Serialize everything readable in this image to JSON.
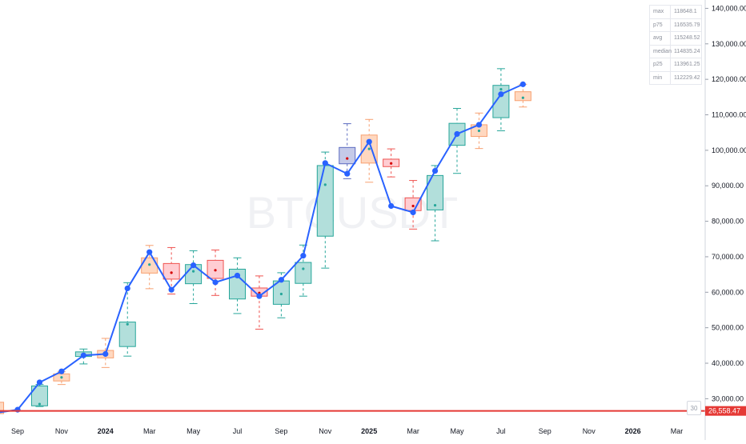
{
  "watermark": "BTCUSDT",
  "badge": "30",
  "stats": [
    {
      "key": "max",
      "value": "118648.1"
    },
    {
      "key": "p75",
      "value": "116535.79"
    },
    {
      "key": "avg",
      "value": "115248.52"
    },
    {
      "key": "median",
      "value": "114835.24"
    },
    {
      "key": "p25",
      "value": "113961.25"
    },
    {
      "key": "min",
      "value": "112229.42"
    }
  ],
  "price_tag": "26,558.47",
  "colors": {
    "line": "#2962ff",
    "up_fill": "#b2dfdb",
    "up_stroke": "#26a69a",
    "down_fill": "#ffcdd2",
    "down_stroke": "#ef5350",
    "orange_fill": "#ffd8c0",
    "orange_stroke": "#f7a070",
    "blue_fill": "#c5cae9",
    "blue_stroke": "#5c6bc0",
    "red_line": "#e53935"
  },
  "chart_data": {
    "type": "box",
    "title": "",
    "xlabel": "",
    "ylabel": "",
    "y_ticks": [
      "30,000.00",
      "40,000.00",
      "50,000.00",
      "60,000.00",
      "70,000.00",
      "80,000.00",
      "90,000.00",
      "100,000.00",
      "110,000.00",
      "120,000.00",
      "130,000.00",
      "140,000.00"
    ],
    "ylim": [
      24000,
      141000
    ],
    "x_ticks": [
      "Sep",
      "Nov",
      "2024",
      "Mar",
      "May",
      "Jul",
      "Sep",
      "Nov",
      "2025",
      "Mar",
      "May",
      "Jul",
      "Sep",
      "Nov",
      "2026",
      "Mar"
    ],
    "series": [
      {
        "x": [
          "2023-08",
          "2023-09",
          "2023-10",
          "2023-11",
          "2023-12",
          "2024-01",
          "2024-02",
          "2024-03",
          "2024-04",
          "2024-05",
          "2024-06",
          "2024-07",
          "2024-08",
          "2024-09",
          "2024-10",
          "2024-11",
          "2024-12",
          "2025-01",
          "2025-02",
          "2025-03",
          "2025-04",
          "2025-05",
          "2025-06",
          "2025-07",
          "2025-08"
        ],
        "values": [
          26000,
          26900,
          34600,
          37700,
          42200,
          42600,
          61100,
          71300,
          60700,
          67600,
          62800,
          64700,
          58900,
          63500,
          70300,
          96400,
          93400,
          102400,
          84300,
          82500,
          94200,
          104600,
          107200,
          115800,
          118600
        ]
      }
    ],
    "boxes": [
      {
        "x": "2023-08",
        "q1": 25800,
        "q3": 29000,
        "color": "orange"
      },
      {
        "x": "2023-10",
        "low": 27800,
        "high": 34000,
        "q1": 28000,
        "q3": 33600,
        "med": 28500,
        "color": "green"
      },
      {
        "x": "2023-11",
        "low": 34000,
        "high": 37600,
        "q1": 35000,
        "q3": 37000,
        "med": 36000,
        "color": "orange"
      },
      {
        "x": "2023-12",
        "low": 39800,
        "high": 44000,
        "q1": 41900,
        "q3": 43200,
        "med": 42600,
        "color": "green"
      },
      {
        "x": "2024-01",
        "low": 38800,
        "high": 47000,
        "q1": 41500,
        "q3": 43600,
        "med": 42600,
        "color": "orange"
      },
      {
        "x": "2024-02",
        "low": 42000,
        "high": 62700,
        "q1": 44700,
        "q3": 51600,
        "med": 51000,
        "color": "green"
      },
      {
        "x": "2024-03",
        "low": 61000,
        "high": 73200,
        "q1": 65400,
        "q3": 69700,
        "med": 67800,
        "color": "orange"
      },
      {
        "x": "2024-04",
        "low": 59500,
        "high": 72600,
        "q1": 63700,
        "q3": 68100,
        "med": 65500,
        "color": "red"
      },
      {
        "x": "2024-05",
        "low": 56800,
        "high": 71700,
        "q1": 62400,
        "q3": 67800,
        "med": 65900,
        "color": "green"
      },
      {
        "x": "2024-06",
        "low": 59100,
        "high": 71900,
        "q1": 63900,
        "q3": 69000,
        "med": 66200,
        "color": "red"
      },
      {
        "x": "2024-07",
        "low": 54000,
        "high": 69700,
        "q1": 58100,
        "q3": 66500,
        "med": 64500,
        "color": "green"
      },
      {
        "x": "2024-08",
        "low": 49600,
        "high": 64600,
        "q1": 58900,
        "q3": 61200,
        "med": 59800,
        "color": "red"
      },
      {
        "x": "2024-09",
        "low": 52800,
        "high": 65500,
        "q1": 56600,
        "q3": 63200,
        "med": 59500,
        "color": "green"
      },
      {
        "x": "2024-10",
        "low": 58900,
        "high": 73300,
        "q1": 62500,
        "q3": 68400,
        "med": 66600,
        "color": "green"
      },
      {
        "x": "2024-11",
        "low": 66800,
        "high": 99500,
        "q1": 75800,
        "q3": 95700,
        "med": 90300,
        "color": "green"
      },
      {
        "x": "2024-12",
        "low": 92000,
        "high": 107500,
        "q1": 96200,
        "q3": 100800,
        "med": 97700,
        "color": "blue"
      },
      {
        "x": "2025-01",
        "low": 91000,
        "high": 108700,
        "q1": 96400,
        "q3": 104300,
        "med": 100400,
        "color": "orange"
      },
      {
        "x": "2025-02",
        "low": 92500,
        "high": 100400,
        "q1": 95400,
        "q3": 97500,
        "med": 96300,
        "color": "red"
      },
      {
        "x": "2025-03",
        "low": 77800,
        "high": 91500,
        "q1": 83000,
        "q3": 86600,
        "med": 84300,
        "color": "red"
      },
      {
        "x": "2025-04",
        "low": 74500,
        "high": 95700,
        "q1": 83200,
        "q3": 92900,
        "med": 84500,
        "color": "green"
      },
      {
        "x": "2025-05",
        "low": 93500,
        "high": 111800,
        "q1": 101400,
        "q3": 107600,
        "med": 104500,
        "color": "green"
      },
      {
        "x": "2025-06",
        "low": 100500,
        "high": 110500,
        "q1": 103900,
        "q3": 107200,
        "med": 105500,
        "color": "orange"
      },
      {
        "x": "2025-07",
        "low": 105500,
        "high": 123000,
        "q1": 109200,
        "q3": 118300,
        "med": 117200,
        "color": "green"
      },
      {
        "x": "2025-08",
        "low": 112200,
        "high": 118600,
        "q1": 114000,
        "q3": 116500,
        "med": 114800,
        "color": "orange"
      }
    ],
    "reference_line": {
      "value": 26558.47
    },
    "grid": false,
    "legend": "none"
  }
}
